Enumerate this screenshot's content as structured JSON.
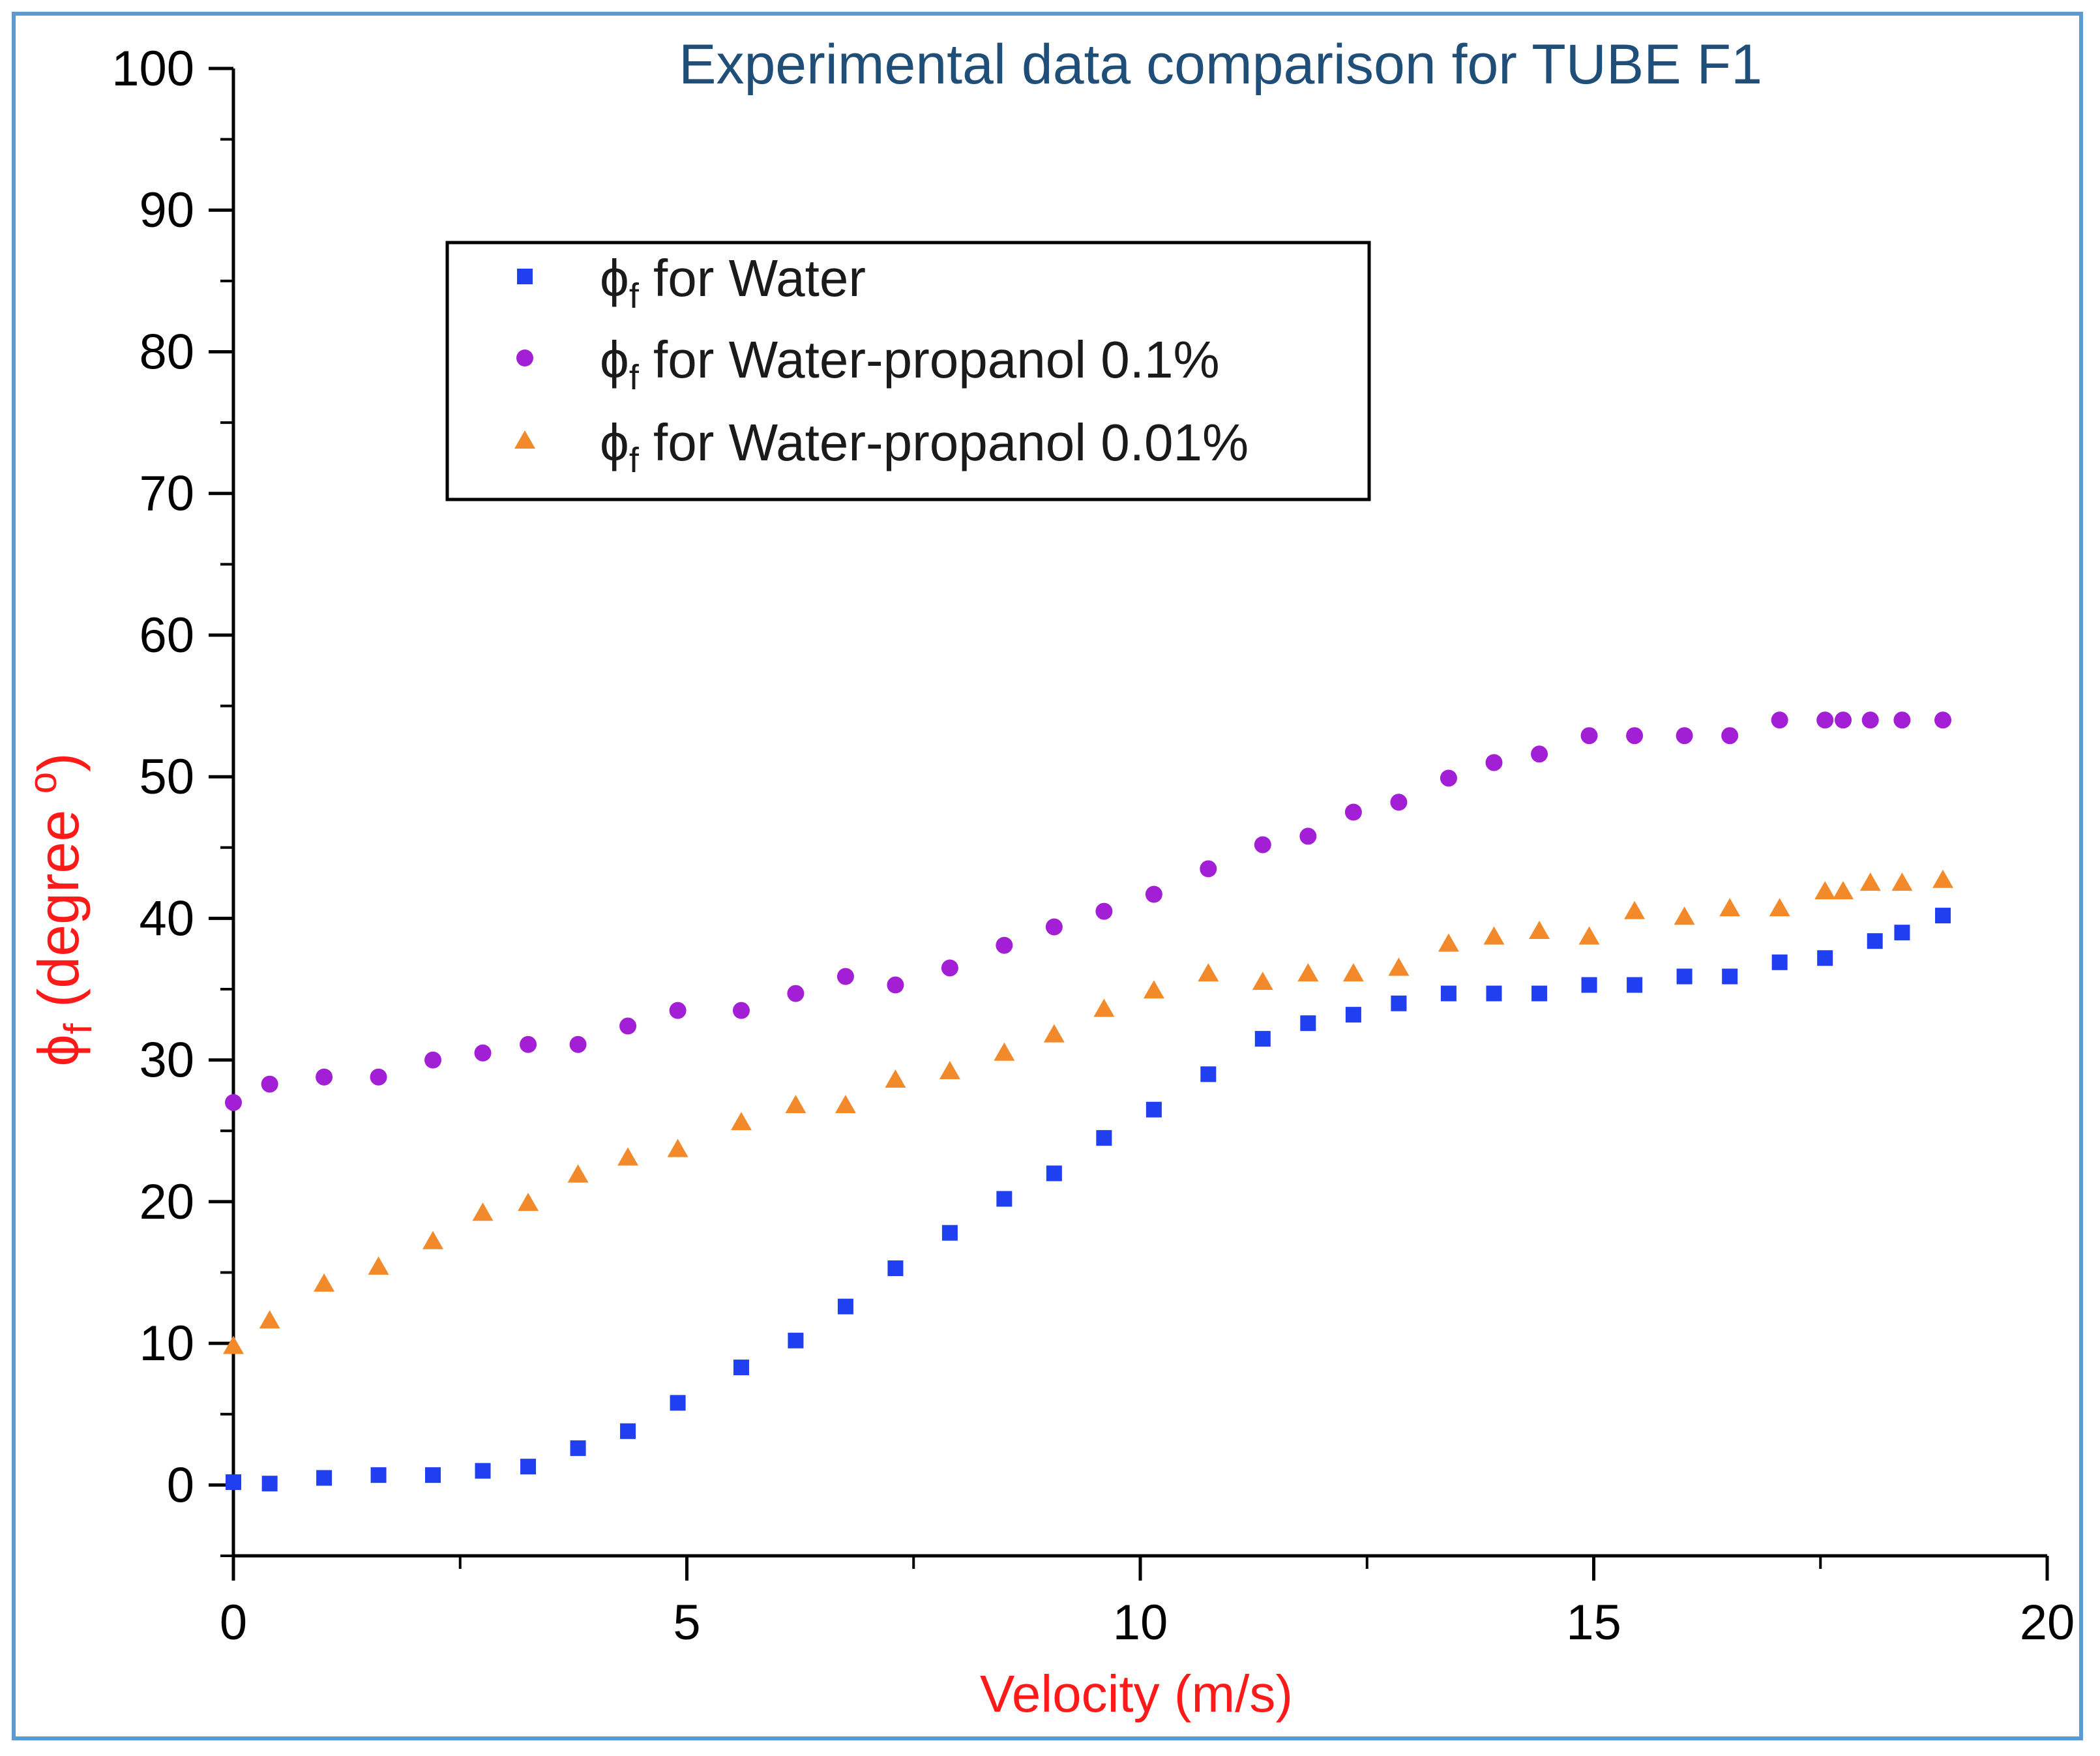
{
  "chart_data": {
    "type": "scatter",
    "title": "Experimental data comparison for TUBE F1",
    "xlabel": "Velocity (m/s)",
    "ylabel_symbol": "ϕ",
    "ylabel_subscript": "f",
    "ylabel_rest": " (degree ",
    "ylabel_degree": "o",
    "ylabel_close": ")",
    "xlim": [
      0,
      20
    ],
    "ylim": [
      -5,
      100
    ],
    "x_ticks": [
      0,
      5,
      10,
      15,
      20
    ],
    "x_tick_labels": [
      "0",
      "5",
      "10",
      "15",
      "20"
    ],
    "y_ticks": [
      0,
      10,
      20,
      30,
      40,
      50,
      60,
      70,
      80,
      90,
      100
    ],
    "y_tick_labels": [
      "0",
      "10",
      "20",
      "30",
      "40",
      "50",
      "60",
      "70",
      "80",
      "90",
      "100"
    ],
    "grid": false,
    "legend_position": "top-left",
    "series": [
      {
        "legend_symbol": "ϕ",
        "legend_sub": "f",
        "legend_text": " for Water",
        "marker": "square",
        "color": "#1f3ff0",
        "x": [
          0.0,
          0.4,
          1.0,
          1.6,
          2.2,
          2.75,
          3.25,
          3.8,
          4.35,
          4.9,
          5.6,
          6.2,
          6.75,
          7.3,
          7.9,
          8.5,
          9.05,
          9.6,
          10.15,
          10.75,
          11.35,
          11.85,
          12.35,
          12.85,
          13.4,
          13.9,
          14.4,
          14.95,
          15.45,
          16.0,
          16.5,
          17.05,
          17.55,
          18.1,
          18.4,
          18.85
        ],
        "y": [
          0.2,
          0.1,
          0.5,
          0.7,
          0.7,
          1.0,
          1.3,
          2.6,
          3.8,
          5.8,
          8.3,
          10.2,
          12.6,
          15.3,
          17.8,
          20.2,
          22.0,
          24.5,
          26.5,
          29.0,
          31.5,
          32.6,
          33.2,
          34.0,
          34.7,
          34.7,
          34.7,
          35.3,
          35.3,
          35.9,
          35.9,
          36.9,
          37.2,
          38.4,
          39.0,
          40.2
        ]
      },
      {
        "legend_symbol": "ϕ",
        "legend_sub": "f",
        "legend_text": " for Water-propanol 0.1%",
        "marker": "circle",
        "color": "#a21fd6",
        "x": [
          0.0,
          0.4,
          1.0,
          1.6,
          2.2,
          2.75,
          3.25,
          3.8,
          4.35,
          4.9,
          5.6,
          6.2,
          6.75,
          7.3,
          7.9,
          8.5,
          9.05,
          9.6,
          10.15,
          10.75,
          11.35,
          11.85,
          12.35,
          12.85,
          13.4,
          13.9,
          14.4,
          14.95,
          15.45,
          16.0,
          16.5,
          17.05,
          17.55,
          17.75,
          18.05,
          18.4,
          18.85
        ],
        "y": [
          27.0,
          28.3,
          28.8,
          28.8,
          30.0,
          30.5,
          31.1,
          31.1,
          32.4,
          33.5,
          33.5,
          34.7,
          35.9,
          35.3,
          36.5,
          38.1,
          39.4,
          40.5,
          41.7,
          43.5,
          45.2,
          45.8,
          47.5,
          48.2,
          49.9,
          51.0,
          51.6,
          52.9,
          52.9,
          52.9,
          52.9,
          54.0,
          54.0,
          54.0,
          54.0,
          54.0,
          54.0
        ]
      },
      {
        "legend_symbol": "ϕ",
        "legend_sub": "f",
        "legend_text": " for Water-propanol 0.01%",
        "marker": "triangle",
        "color": "#f28a2c",
        "x": [
          0.0,
          0.4,
          1.0,
          1.6,
          2.2,
          2.75,
          3.25,
          3.8,
          4.35,
          4.9,
          5.6,
          6.2,
          6.75,
          7.3,
          7.9,
          8.5,
          9.05,
          9.6,
          10.15,
          10.75,
          11.35,
          11.85,
          12.35,
          12.85,
          13.4,
          13.9,
          14.4,
          14.95,
          15.45,
          16.0,
          16.5,
          17.05,
          17.55,
          17.75,
          18.05,
          18.4,
          18.85
        ],
        "y": [
          9.8,
          11.6,
          14.2,
          15.4,
          17.2,
          19.2,
          19.9,
          21.9,
          23.1,
          23.7,
          25.6,
          26.8,
          26.8,
          28.6,
          29.2,
          30.5,
          31.8,
          33.6,
          34.9,
          36.1,
          35.5,
          36.1,
          36.1,
          36.5,
          38.2,
          38.7,
          39.1,
          38.7,
          40.5,
          40.1,
          40.7,
          40.7,
          41.9,
          41.9,
          42.5,
          42.5,
          42.7
        ]
      }
    ]
  }
}
